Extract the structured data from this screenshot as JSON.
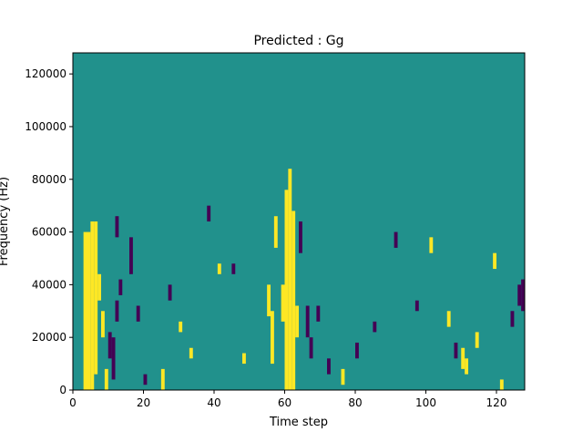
{
  "chart_data": {
    "type": "heatmap",
    "title": "Predicted : Gg",
    "xlabel": "Time step",
    "ylabel": "Frequency (Hz)",
    "xlim": [
      0,
      128
    ],
    "ylim": [
      0,
      128000
    ],
    "x_ticks": [
      0,
      20,
      40,
      60,
      80,
      100,
      120
    ],
    "y_ticks": [
      0,
      20000,
      40000,
      60000,
      80000,
      100000,
      120000
    ],
    "x_tick_labels": [
      "0",
      "20",
      "40",
      "60",
      "80",
      "100",
      "120"
    ],
    "y_tick_labels": [
      "0",
      "20000",
      "40000",
      "60000",
      "80000",
      "100000",
      "120000"
    ],
    "grid": false,
    "legend": "none",
    "colors": {
      "background_value": "#21918c",
      "high_value": "#fde725",
      "low_value": "#440154"
    },
    "value_levels": [
      "low",
      "mid",
      "high"
    ],
    "background_level": "mid",
    "cells": [
      {
        "x": 3,
        "y_start": 0,
        "y_end": 60000,
        "level": "high"
      },
      {
        "x": 4,
        "y_start": 0,
        "y_end": 60000,
        "level": "high"
      },
      {
        "x": 5,
        "y_start": 0,
        "y_end": 64000,
        "level": "high"
      },
      {
        "x": 6,
        "y_start": 6000,
        "y_end": 64000,
        "level": "high"
      },
      {
        "x": 7,
        "y_start": 34000,
        "y_end": 44000,
        "level": "high"
      },
      {
        "x": 8,
        "y_start": 20000,
        "y_end": 30000,
        "level": "high"
      },
      {
        "x": 9,
        "y_start": 0,
        "y_end": 8000,
        "level": "high"
      },
      {
        "x": 10,
        "y_start": 12000,
        "y_end": 22000,
        "level": "low"
      },
      {
        "x": 11,
        "y_start": 4000,
        "y_end": 20000,
        "level": "low"
      },
      {
        "x": 12,
        "y_start": 26000,
        "y_end": 34000,
        "level": "low"
      },
      {
        "x": 12,
        "y_start": 58000,
        "y_end": 66000,
        "level": "low"
      },
      {
        "x": 13,
        "y_start": 36000,
        "y_end": 42000,
        "level": "low"
      },
      {
        "x": 16,
        "y_start": 44000,
        "y_end": 58000,
        "level": "low"
      },
      {
        "x": 18,
        "y_start": 26000,
        "y_end": 32000,
        "level": "low"
      },
      {
        "x": 20,
        "y_start": 2000,
        "y_end": 6000,
        "level": "low"
      },
      {
        "x": 25,
        "y_start": 0,
        "y_end": 8000,
        "level": "high"
      },
      {
        "x": 27,
        "y_start": 34000,
        "y_end": 40000,
        "level": "low"
      },
      {
        "x": 30,
        "y_start": 22000,
        "y_end": 26000,
        "level": "high"
      },
      {
        "x": 33,
        "y_start": 12000,
        "y_end": 16000,
        "level": "high"
      },
      {
        "x": 38,
        "y_start": 64000,
        "y_end": 70000,
        "level": "low"
      },
      {
        "x": 41,
        "y_start": 44000,
        "y_end": 48000,
        "level": "high"
      },
      {
        "x": 45,
        "y_start": 44000,
        "y_end": 48000,
        "level": "low"
      },
      {
        "x": 48,
        "y_start": 10000,
        "y_end": 14000,
        "level": "high"
      },
      {
        "x": 55,
        "y_start": 28000,
        "y_end": 40000,
        "level": "high"
      },
      {
        "x": 56,
        "y_start": 10000,
        "y_end": 30000,
        "level": "high"
      },
      {
        "x": 57,
        "y_start": 54000,
        "y_end": 66000,
        "level": "high"
      },
      {
        "x": 59,
        "y_start": 26000,
        "y_end": 40000,
        "level": "high"
      },
      {
        "x": 60,
        "y_start": 0,
        "y_end": 76000,
        "level": "high"
      },
      {
        "x": 61,
        "y_start": 0,
        "y_end": 84000,
        "level": "high"
      },
      {
        "x": 62,
        "y_start": 0,
        "y_end": 68000,
        "level": "high"
      },
      {
        "x": 63,
        "y_start": 20000,
        "y_end": 32000,
        "level": "high"
      },
      {
        "x": 64,
        "y_start": 52000,
        "y_end": 64000,
        "level": "low"
      },
      {
        "x": 66,
        "y_start": 20000,
        "y_end": 32000,
        "level": "low"
      },
      {
        "x": 67,
        "y_start": 12000,
        "y_end": 20000,
        "level": "low"
      },
      {
        "x": 69,
        "y_start": 26000,
        "y_end": 32000,
        "level": "low"
      },
      {
        "x": 72,
        "y_start": 6000,
        "y_end": 12000,
        "level": "low"
      },
      {
        "x": 76,
        "y_start": 2000,
        "y_end": 8000,
        "level": "high"
      },
      {
        "x": 80,
        "y_start": 12000,
        "y_end": 18000,
        "level": "low"
      },
      {
        "x": 85,
        "y_start": 22000,
        "y_end": 26000,
        "level": "low"
      },
      {
        "x": 91,
        "y_start": 54000,
        "y_end": 60000,
        "level": "low"
      },
      {
        "x": 97,
        "y_start": 30000,
        "y_end": 34000,
        "level": "low"
      },
      {
        "x": 101,
        "y_start": 52000,
        "y_end": 58000,
        "level": "high"
      },
      {
        "x": 106,
        "y_start": 24000,
        "y_end": 30000,
        "level": "high"
      },
      {
        "x": 108,
        "y_start": 12000,
        "y_end": 18000,
        "level": "low"
      },
      {
        "x": 110,
        "y_start": 8000,
        "y_end": 16000,
        "level": "high"
      },
      {
        "x": 111,
        "y_start": 6000,
        "y_end": 12000,
        "level": "high"
      },
      {
        "x": 114,
        "y_start": 16000,
        "y_end": 22000,
        "level": "high"
      },
      {
        "x": 119,
        "y_start": 46000,
        "y_end": 52000,
        "level": "high"
      },
      {
        "x": 121,
        "y_start": 0,
        "y_end": 4000,
        "level": "high"
      },
      {
        "x": 124,
        "y_start": 24000,
        "y_end": 30000,
        "level": "low"
      },
      {
        "x": 126,
        "y_start": 32000,
        "y_end": 40000,
        "level": "low"
      },
      {
        "x": 127,
        "y_start": 30000,
        "y_end": 42000,
        "level": "low"
      }
    ]
  }
}
